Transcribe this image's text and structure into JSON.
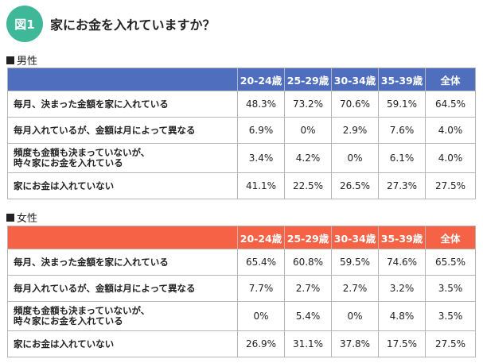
{
  "figure": {
    "badge": "図1",
    "title": "家にお金を入れていますか？"
  },
  "chart_data": [
    {
      "type": "table",
      "section": "男性",
      "columns": [
        "20-24歳",
        "25-29歳",
        "30-34歳",
        "35-39歳",
        "全体"
      ],
      "rows": [
        {
          "label": "毎月、決まった金額を家に入れている",
          "values": [
            "48.3%",
            "73.2%",
            "70.6%",
            "59.1%",
            "64.5%"
          ]
        },
        {
          "label": "毎月入れているが、金額は月によって異なる",
          "values": [
            "6.9%",
            "0%",
            "2.9%",
            "7.6%",
            "4.0%"
          ]
        },
        {
          "label": "頻度も金額も決まっていないが、\n時々家にお金を入れている",
          "values": [
            "3.4%",
            "4.2%",
            "0%",
            "6.1%",
            "4.0%"
          ]
        },
        {
          "label": "家にお金は入れていない",
          "values": [
            "41.1%",
            "22.5%",
            "26.5%",
            "27.3%",
            "27.5%"
          ]
        }
      ]
    },
    {
      "type": "table",
      "section": "女性",
      "columns": [
        "20-24歳",
        "25-29歳",
        "30-34歳",
        "35-39歳",
        "全体"
      ],
      "rows": [
        {
          "label": "毎月、決まった金額を家に入れている",
          "values": [
            "65.4%",
            "60.8%",
            "59.5%",
            "74.6%",
            "65.5%"
          ]
        },
        {
          "label": "毎月入れているが、金額は月によって異なる",
          "values": [
            "7.7%",
            "2.7%",
            "2.7%",
            "3.2%",
            "3.5%"
          ]
        },
        {
          "label": "頻度も金額も決まっていないが、\n時々家にお金を入れている",
          "values": [
            "0%",
            "5.4%",
            "0%",
            "4.8%",
            "3.5%"
          ]
        },
        {
          "label": "家にお金は入れていない",
          "values": [
            "26.9%",
            "31.1%",
            "37.8%",
            "17.5%",
            "27.5%"
          ]
        }
      ]
    }
  ],
  "colors": {
    "badge": "#3fb899",
    "male_header": "#4f6fbe",
    "female_header": "#f56245"
  }
}
